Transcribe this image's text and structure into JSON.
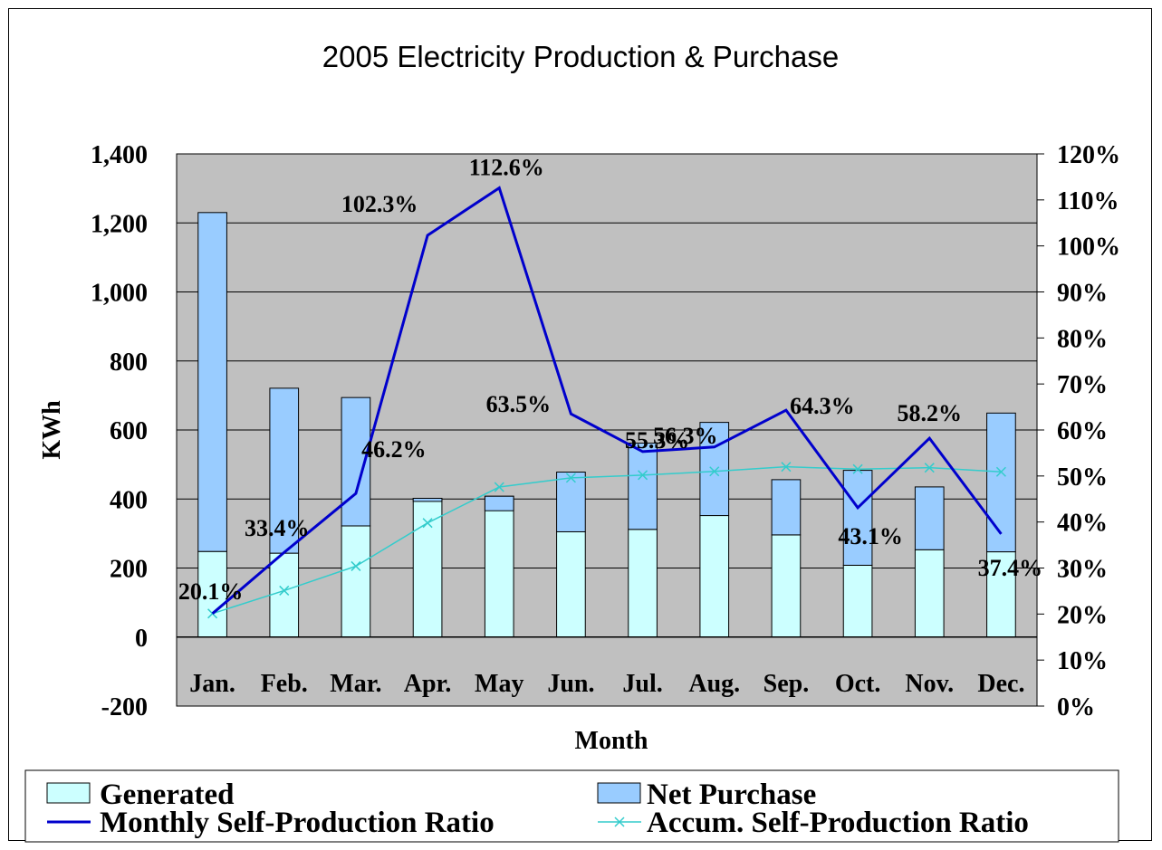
{
  "chart_data": {
    "type": "bar",
    "title": "2005 Electricity Production & Purchase",
    "xlabel": "Month",
    "ylabel": "KWh",
    "categories": [
      "Jan.",
      "Feb.",
      "Mar.",
      "Apr.",
      "May",
      "Jun.",
      "Jul.",
      "Aug.",
      "Sep.",
      "Oct.",
      "Nov.",
      "Dec."
    ],
    "ylim": [
      -200,
      1400
    ],
    "y_ticks": [
      "-200",
      "0",
      "200",
      "400",
      "600",
      "800",
      "1,000",
      "1,200",
      "1,400"
    ],
    "y2lim": [
      0,
      120
    ],
    "y2_ticks": [
      "0%",
      "10%",
      "20%",
      "30%",
      "40%",
      "50%",
      "60%",
      "70%",
      "80%",
      "90%",
      "100%",
      "110%",
      "120%"
    ],
    "grid": true,
    "legend_position": "bottom",
    "series": [
      {
        "name": "Generated",
        "kind": "stacked-bar",
        "axis": "left",
        "color": "#CCFFFF",
        "values": [
          248,
          243,
          322,
          402,
          408,
          305,
          312,
          352,
          296,
          208,
          253,
          247
        ]
      },
      {
        "name": "Net Purchase",
        "kind": "stacked-bar",
        "axis": "left",
        "color": "#99CCFF",
        "values": [
          982,
          478,
          372,
          -9,
          -42,
          173,
          250,
          270,
          160,
          275,
          182,
          402
        ]
      },
      {
        "name": "Monthly Self-Production Ratio",
        "kind": "line",
        "axis": "right",
        "color": "#0000CC",
        "values": [
          20.1,
          33.4,
          46.2,
          102.3,
          112.6,
          63.5,
          55.3,
          56.3,
          64.3,
          43.1,
          58.2,
          37.4
        ],
        "labels": [
          "20.1%",
          "33.4%",
          "46.2%",
          "102.3%",
          "112.6%",
          "63.5%",
          "55.3%",
          "56.3%",
          "64.3%",
          "43.1%",
          "58.2%",
          "37.4%"
        ]
      },
      {
        "name": "Accum. Self-Production Ratio",
        "kind": "line",
        "axis": "right",
        "color": "#33CCCC",
        "marker": "x",
        "values": [
          20.1,
          25.1,
          30.4,
          39.8,
          47.6,
          49.6,
          50.2,
          51.0,
          52.0,
          51.5,
          51.8,
          50.9
        ]
      }
    ]
  }
}
